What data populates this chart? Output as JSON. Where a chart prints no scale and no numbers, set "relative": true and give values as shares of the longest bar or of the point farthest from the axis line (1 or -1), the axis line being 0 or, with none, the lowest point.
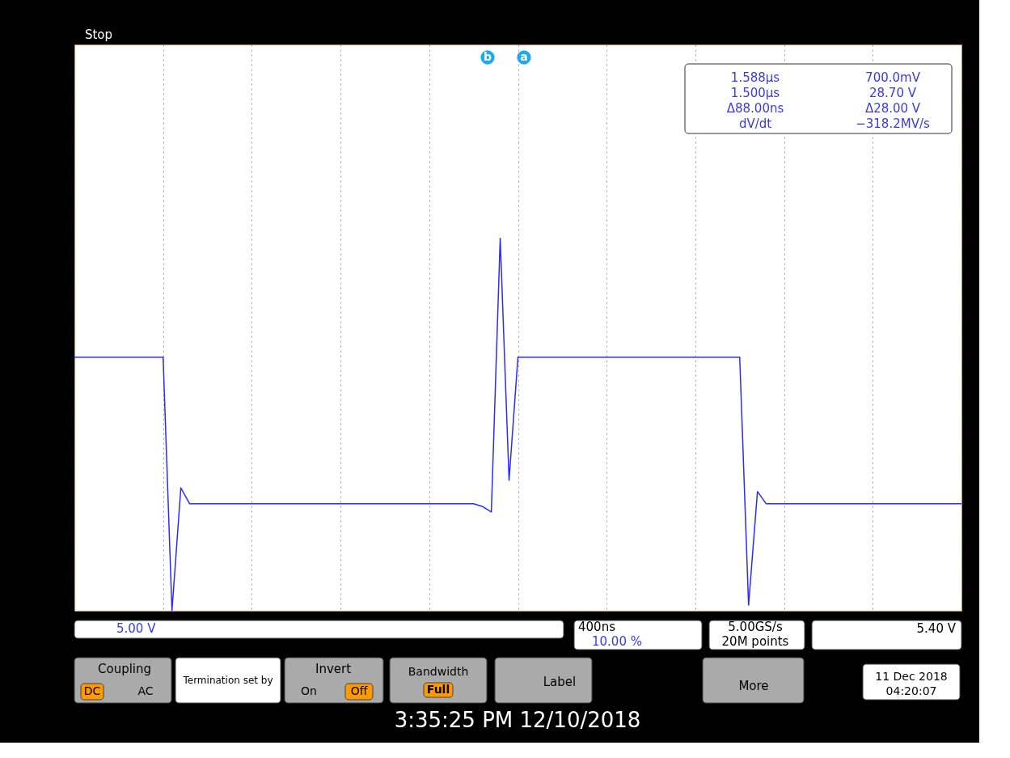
{
  "chart_data": {
    "type": "line",
    "relative": true,
    "categories": [
      null,
      null,
      null,
      null,
      null,
      null,
      null,
      null,
      null,
      null,
      null,
      null,
      null,
      null,
      null,
      null,
      null,
      null,
      null,
      null,
      null,
      null,
      null,
      null,
      null,
      null,
      null,
      null,
      null,
      null,
      null,
      null,
      null,
      null,
      null,
      null,
      null,
      null,
      null,
      null,
      null,
      null,
      null,
      null,
      null,
      null,
      null,
      null,
      null,
      null,
      null,
      null,
      null,
      null,
      null,
      null,
      null,
      null,
      null,
      null,
      null,
      null,
      null,
      null,
      null,
      null,
      null,
      null,
      null,
      null,
      null,
      null,
      null,
      null,
      null,
      null,
      null,
      null,
      null,
      null,
      null,
      null,
      null,
      null,
      null,
      null,
      null,
      null,
      null,
      null,
      null,
      null,
      null,
      null,
      null,
      null,
      null,
      null,
      null,
      null,
      null
    ],
    "values": [
      0.681,
      0.681,
      0.681,
      0.681,
      0.681,
      0.681,
      0.681,
      0.681,
      0.681,
      0.681,
      0.681,
      0.0,
      0.33,
      0.287,
      0.287,
      0.287,
      0.287,
      0.287,
      0.287,
      0.287,
      0.287,
      0.287,
      0.287,
      0.287,
      0.287,
      0.287,
      0.287,
      0.287,
      0.287,
      0.287,
      0.287,
      0.287,
      0.287,
      0.287,
      0.287,
      0.287,
      0.287,
      0.287,
      0.287,
      0.287,
      0.287,
      0.287,
      0.287,
      0.287,
      0.287,
      0.287,
      0.28,
      0.265,
      1.0,
      0.35,
      0.681,
      0.681,
      0.681,
      0.681,
      0.681,
      0.681,
      0.681,
      0.681,
      0.681,
      0.681,
      0.681,
      0.681,
      0.681,
      0.681,
      0.681,
      0.681,
      0.681,
      0.681,
      0.681,
      0.681,
      0.681,
      0.681,
      0.681,
      0.681,
      0.681,
      0.681,
      0.015,
      0.32,
      0.287,
      0.287,
      0.287,
      0.287,
      0.287,
      0.287,
      0.287,
      0.287,
      0.287,
      0.287,
      0.287,
      0.287,
      0.287,
      0.287,
      0.287,
      0.287,
      0.287,
      0.287,
      0.287,
      0.287,
      0.287,
      0.287,
      0.287
    ],
    "color": "#2b2bff",
    "tick_labels": false,
    "grid": "x",
    "marker": "none",
    "line_style": "solid",
    "annotations": [
      "Stop",
      "1.588µs",
      "700.0mV",
      "1.500µs",
      "28.70 V",
      "Δ88.00ns",
      "Δ28.00 V",
      "dV/dt",
      "−318.2MV/s",
      "5.00 V",
      "400ns",
      "10.00 %",
      "5.00GS/s",
      "20M points",
      "5.40 V",
      "Coupling",
      "DC",
      "AC",
      "Termination set by",
      "Invert",
      "On",
      "Off",
      "Bandwidth",
      "Full",
      "Label",
      "More",
      "11 Dec 2018",
      "04:20:07",
      "3:35:25 PM   12/10/2018",
      "b",
      "a"
    ]
  }
}
